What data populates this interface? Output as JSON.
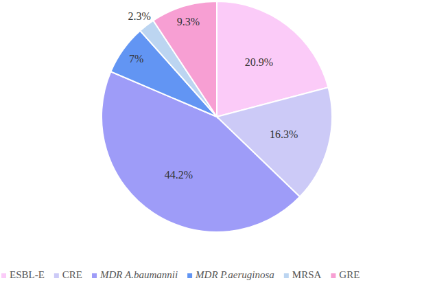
{
  "chart_data": {
    "type": "pie",
    "categories": [
      "ESBL-E",
      "CRE",
      "MDR A.baumannii",
      "MDR P.aeruginosa",
      "MRSA",
      "GRE"
    ],
    "values": [
      20.9,
      16.3,
      44.2,
      7,
      2.3,
      9.3
    ],
    "value_labels": [
      "20.9%",
      "16.3%",
      "44.2%",
      "7%",
      "2.3%",
      "9.3%"
    ],
    "colors": [
      "#fbcbf8",
      "#cccaf7",
      "#9e9cf8",
      "#6295f3",
      "#bcd5f1",
      "#f79fd3"
    ],
    "data_labels": true,
    "legend": "bottom"
  }
}
